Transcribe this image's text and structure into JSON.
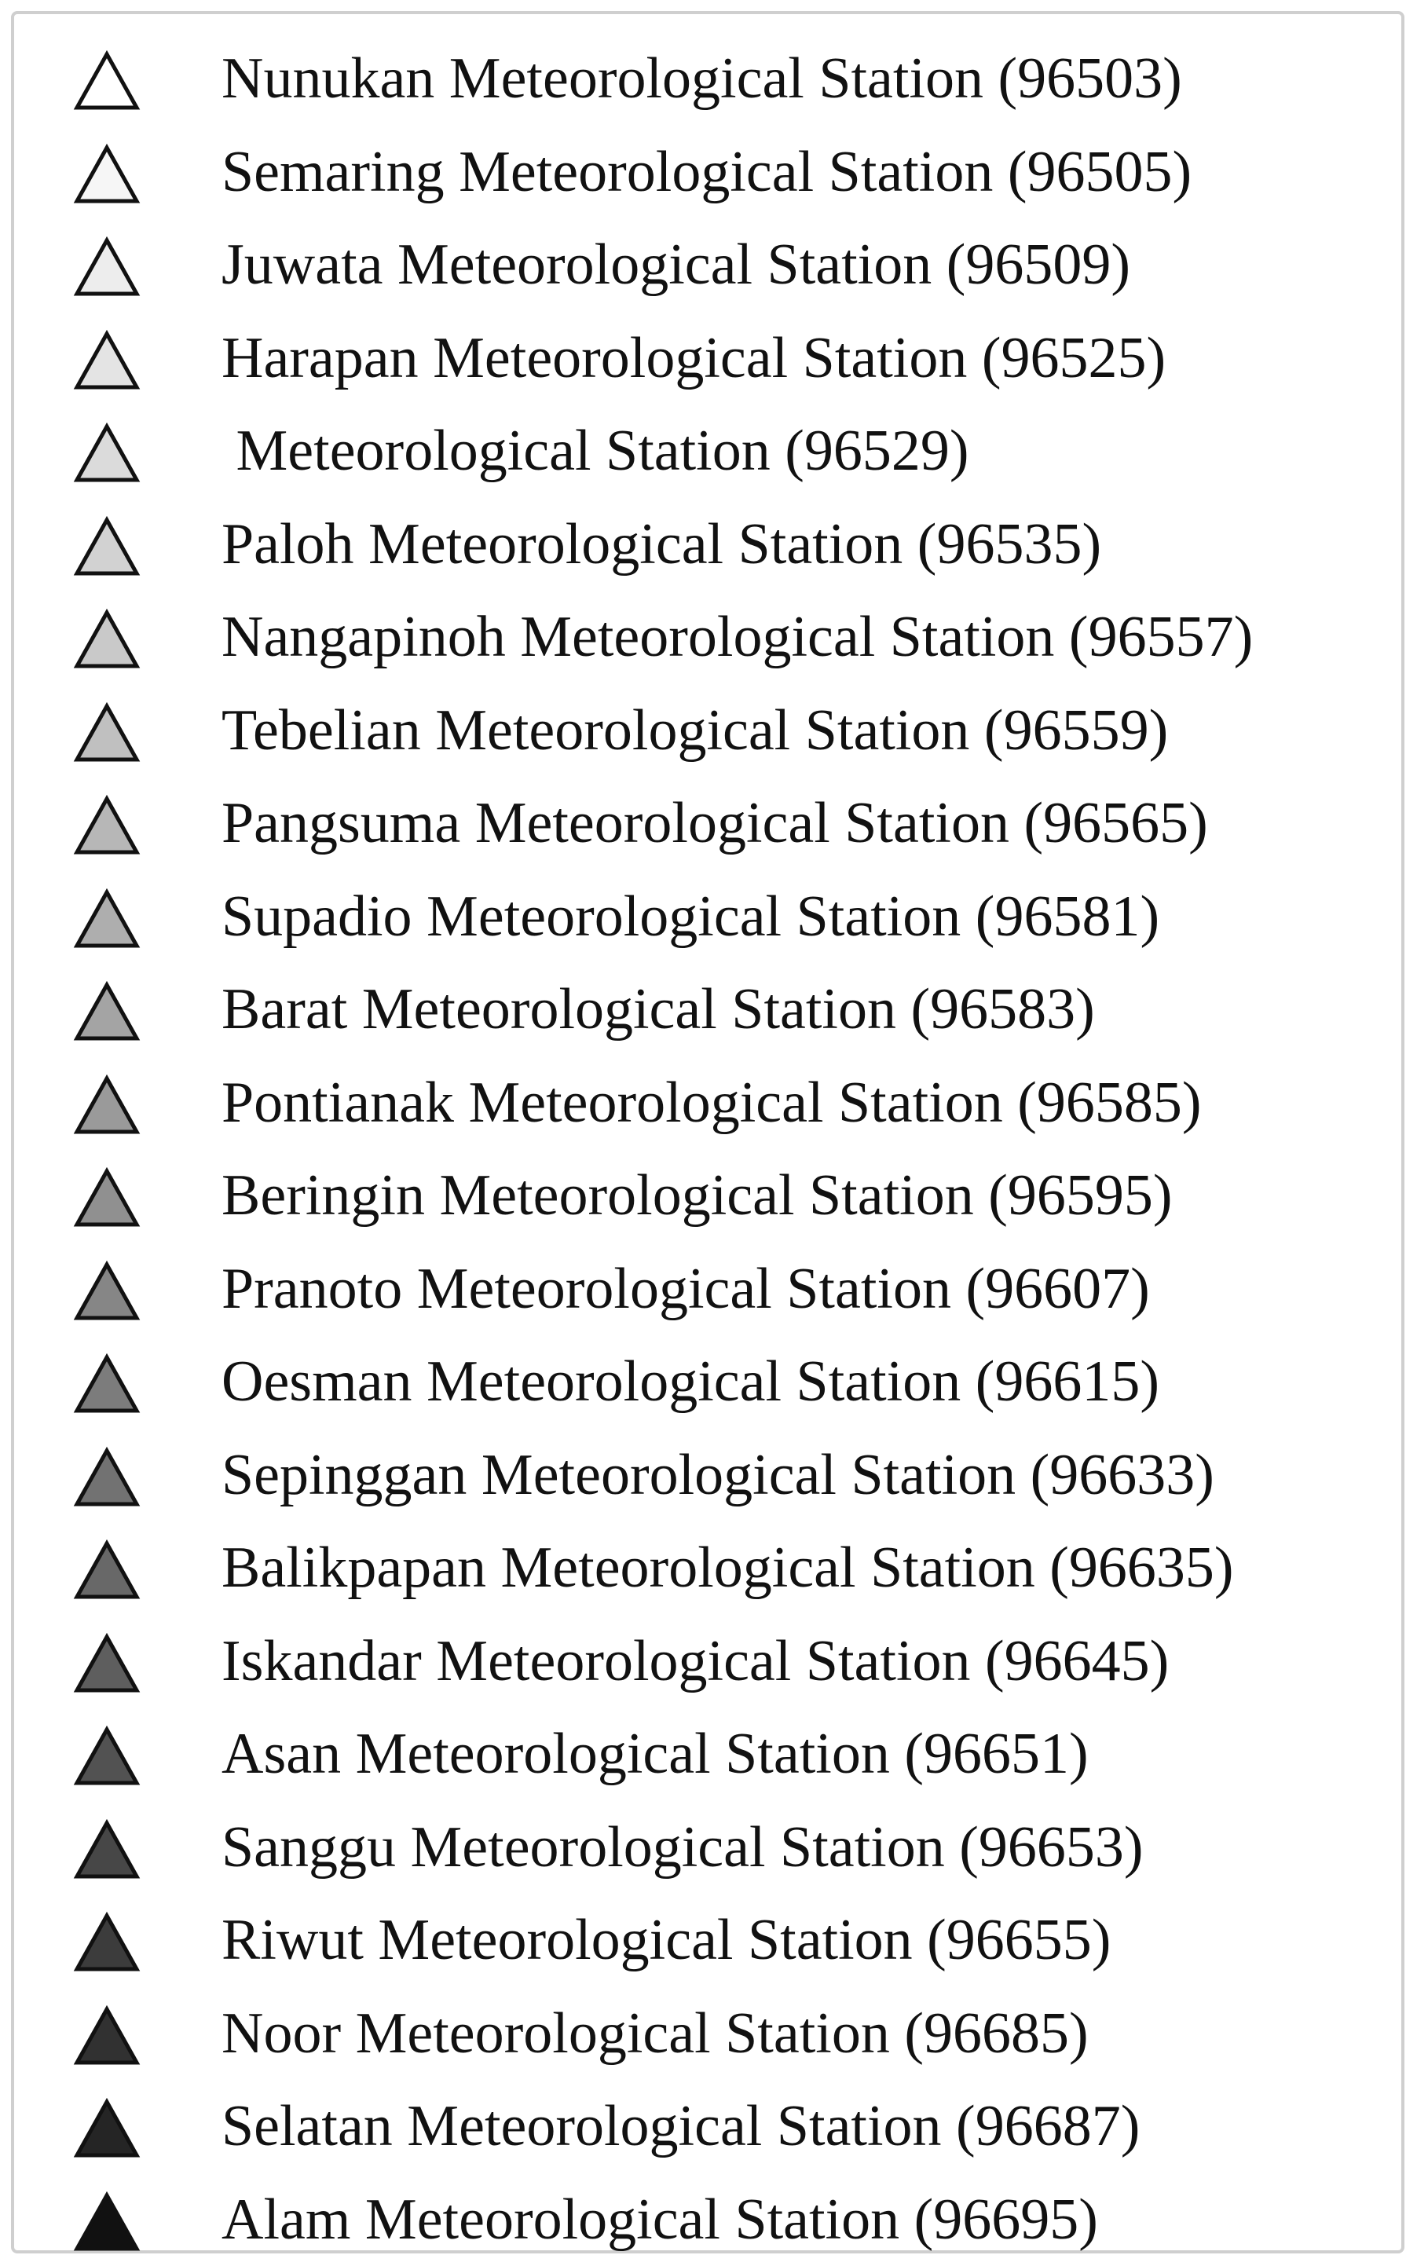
{
  "legend": {
    "items": [
      {
        "label": "Nunukan Meteorological Station (96503)",
        "color": "#ffffff"
      },
      {
        "label": "Semaring Meteorological Station (96505)",
        "color": "#f6f6f6"
      },
      {
        "label": "Juwata Meteorological Station (96509)",
        "color": "#ededed"
      },
      {
        "label": "Harapan Meteorological Station (96525)",
        "color": "#e4e4e4"
      },
      {
        "label": " Meteorological Station (96529)",
        "color": "#dbdbdb"
      },
      {
        "label": "Paloh Meteorological Station (96535)",
        "color": "#d2d2d2"
      },
      {
        "label": "Nangapinoh Meteorological Station (96557)",
        "color": "#c9c9c9"
      },
      {
        "label": "Tebelian Meteorological Station (96559)",
        "color": "#c0c0c0"
      },
      {
        "label": "Pangsuma Meteorological Station (96565)",
        "color": "#b7b7b7"
      },
      {
        "label": "Supadio Meteorological Station (96581)",
        "color": "#aeaeae"
      },
      {
        "label": "Barat Meteorological Station (96583)",
        "color": "#a4a4a4"
      },
      {
        "label": "Pontianak Meteorological Station (96585)",
        "color": "#9a9a9a"
      },
      {
        "label": "Beringin Meteorological Station (96595)",
        "color": "#909090"
      },
      {
        "label": "Pranoto Meteorological Station (96607)",
        "color": "#868686"
      },
      {
        "label": "Oesman Meteorological Station (96615)",
        "color": "#7c7c7c"
      },
      {
        "label": "Sepinggan Meteorological Station (96633)",
        "color": "#727272"
      },
      {
        "label": "Balikpapan Meteorological Station (96635)",
        "color": "#686868"
      },
      {
        "label": "Iskandar Meteorological Station (96645)",
        "color": "#5e5e5e"
      },
      {
        "label": "Asan Meteorological Station (96651)",
        "color": "#525252"
      },
      {
        "label": "Sanggu Meteorological Station (96653)",
        "color": "#474747"
      },
      {
        "label": "Riwut Meteorological Station (96655)",
        "color": "#3c3c3c"
      },
      {
        "label": "Noor Meteorological Station (96685)",
        "color": "#313131"
      },
      {
        "label": "Selatan Meteorological Station (96687)",
        "color": "#252525"
      },
      {
        "label": "Alam Meteorological Station (96695)",
        "color": "#111111"
      }
    ],
    "marker_shape": "triangle-icon",
    "marker_stroke": "#111111"
  }
}
